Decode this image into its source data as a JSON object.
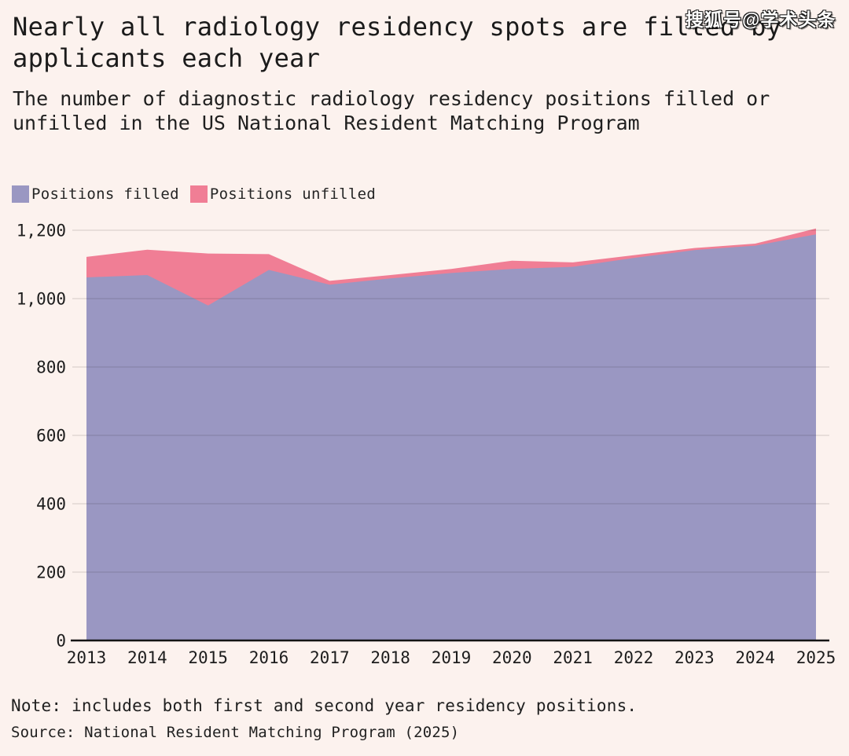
{
  "page": {
    "background": "#fcf2ee"
  },
  "watermark": {
    "text": "搜狐号@学术头条"
  },
  "header": {
    "title": "Nearly all radiology residency spots are filled by applicants each year",
    "subtitle": "The number of diagnostic radiology residency positions filled or unfilled in the US National Resident Matching Program"
  },
  "legend": {
    "items": [
      {
        "label": "Positions filled",
        "color": "#9a97c2"
      },
      {
        "label": "Positions unfilled",
        "color": "#f07e95"
      }
    ]
  },
  "chart_data": {
    "type": "area",
    "stacked": true,
    "title": "Nearly all radiology residency spots are filled by applicants each year",
    "x": [
      2013,
      2014,
      2015,
      2016,
      2017,
      2018,
      2019,
      2020,
      2021,
      2022,
      2023,
      2024,
      2025
    ],
    "series": [
      {
        "name": "Positions filled",
        "color": "#9a97c2",
        "values": [
          1062,
          1069,
          980,
          1084,
          1041,
          1059,
          1075,
          1087,
          1093,
          1119,
          1142,
          1155,
          1188
        ]
      },
      {
        "name": "Positions unfilled",
        "color": "#f07e95",
        "values": [
          60,
          74,
          152,
          46,
          11,
          10,
          12,
          24,
          13,
          8,
          6,
          6,
          17
        ]
      }
    ],
    "xlabel": "",
    "ylabel": "",
    "ylim": [
      0,
      1200
    ],
    "yticks": [
      0,
      200,
      400,
      600,
      800,
      1000,
      1200
    ],
    "grid": true,
    "legend_position": "top-left",
    "colors": {
      "gridline": "rgba(32,26,24,0.15)",
      "baseline": "#141414",
      "tick_text": "#1d1d1d"
    }
  },
  "footer": {
    "note": "Note: includes both first and second year residency positions.",
    "source": "Source: National Resident Matching Program (2025)"
  }
}
